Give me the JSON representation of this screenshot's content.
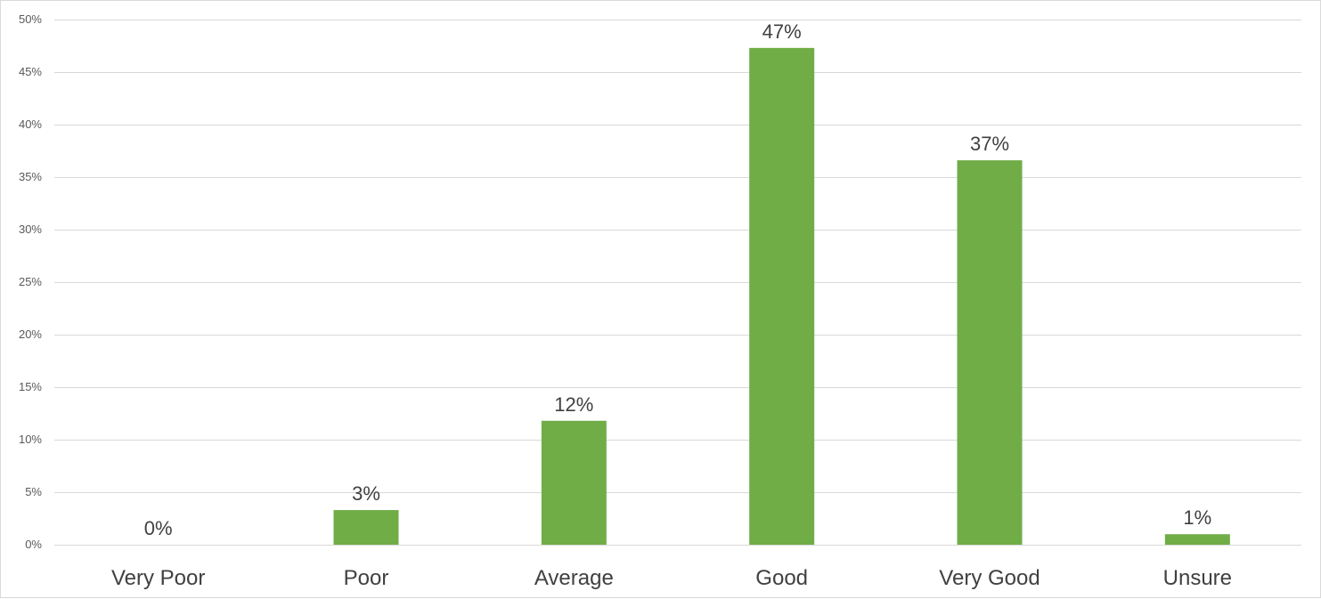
{
  "chart_data": {
    "type": "bar",
    "categories": [
      "Very Poor",
      "Poor",
      "Average",
      "Good",
      "Very Good",
      "Unsure"
    ],
    "values": [
      0,
      3.3,
      11.8,
      47.3,
      36.6,
      1.0
    ],
    "data_labels": [
      "0%",
      "3%",
      "12%",
      "47%",
      "37%",
      "1%"
    ],
    "y_ticks": [
      0,
      5,
      10,
      15,
      20,
      25,
      30,
      35,
      40,
      45,
      50
    ],
    "y_tick_labels": [
      "0%",
      "5%",
      "10%",
      "15%",
      "20%",
      "25%",
      "30%",
      "35%",
      "40%",
      "45%",
      "50%"
    ],
    "ylim": [
      0,
      50
    ],
    "grid": true,
    "legend": "none",
    "colors": {
      "bar": "#70ad47",
      "grid": "#d9d9d9",
      "tick_text": "#595959",
      "label_text": "#404040"
    }
  }
}
